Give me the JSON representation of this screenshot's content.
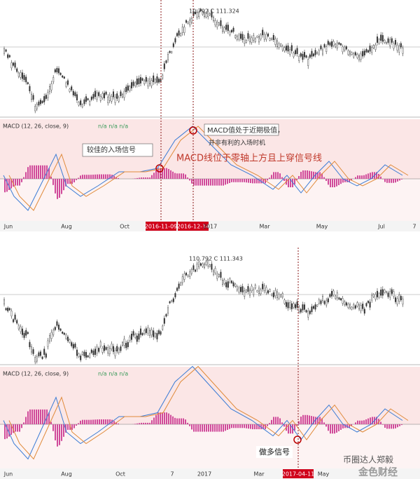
{
  "top_panel": {
    "price_label": "10.792 C 111.324",
    "indicator_label": "MACD (12, 26, close, 9)",
    "indicator_values": "n/a n/a n/a",
    "annotations": [
      "MACD值处于近期极值，",
      "并非有利的入场时机",
      "较佳的入场信号",
      "MACD线位于零轴上方且上穿信号线"
    ],
    "x_labels": [
      "Jun",
      "Aug",
      "Oct",
      "2017",
      "Mar",
      "May",
      "Jul",
      "7"
    ],
    "date_markers": [
      "2016-11-09",
      "2016-12-14"
    ]
  },
  "bottom_panel": {
    "price_label": "110.792 C 111.343",
    "indicator_label": "MACD (12, 26, close, 9)",
    "indicator_values": "n/a n/a n/a",
    "annotations": [
      "做多信号"
    ],
    "x_labels": [
      "Jun",
      "Aug",
      "Oct",
      "7",
      "2017",
      "Mar",
      "May"
    ],
    "date_markers": [
      "2017-04-11"
    ]
  },
  "watermark": [
    "币圈达人郑毅",
    "金色财经"
  ]
}
